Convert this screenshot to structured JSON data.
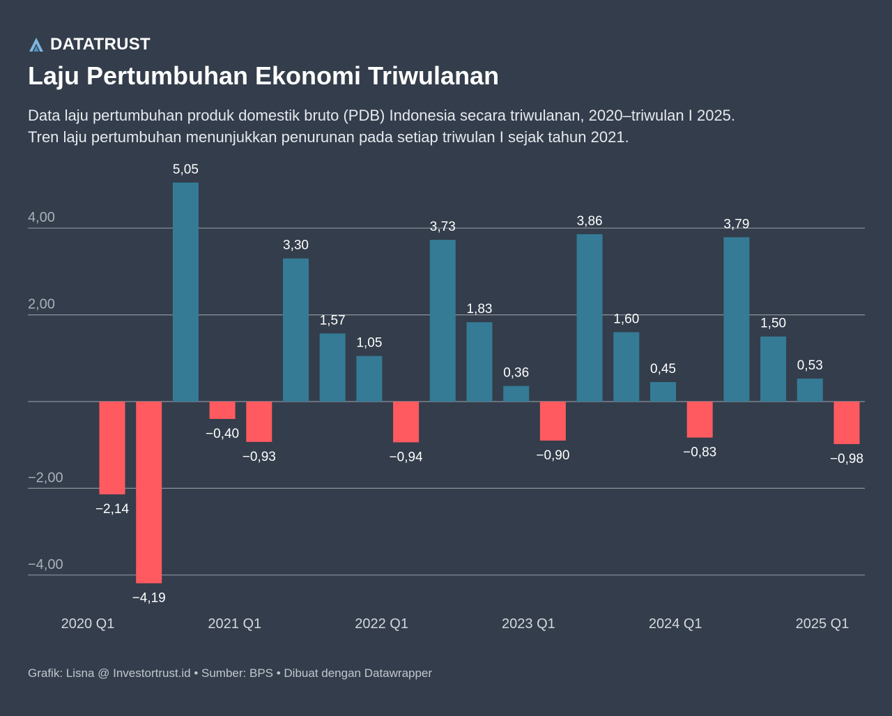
{
  "brand": {
    "name": "DATATRUST",
    "logo_icon": "datatrust-a-icon",
    "logo_color": "#7fb7df"
  },
  "header": {
    "title": "Laju Pertumbuhan Ekonomi Triwulanan",
    "subtitle_line1": "Data laju pertumbuhan produk domestik bruto (PDB) Indonesia secara triwulanan, 2020–triwulan I 2025.",
    "subtitle_line2": "Tren laju pertumbuhan menunjukkan penurunan pada setiap triwulan I sejak tahun 2021."
  },
  "colors": {
    "background": "#333d4b",
    "positive": "#357b96",
    "negative": "#ff5a5f",
    "gridline": "#8d939c",
    "tick_text": "#aab0b8",
    "label_text": "#ffffff"
  },
  "chart_data": {
    "type": "bar",
    "title": "Laju Pertumbuhan Ekonomi Triwulanan",
    "xlabel": "",
    "ylabel": "",
    "ylim": [
      -4.5,
      5.5
    ],
    "grid": true,
    "y_ticks": [
      -4,
      -2,
      0,
      2,
      4
    ],
    "y_tick_labels": [
      "−4,00",
      "−2,00",
      "",
      "2,00",
      "4,00"
    ],
    "x_tick_labels": [
      {
        "index": 0,
        "label": "2020 Q1"
      },
      {
        "index": 4,
        "label": "2021 Q1"
      },
      {
        "index": 8,
        "label": "2022 Q1"
      },
      {
        "index": 12,
        "label": "2023 Q1"
      },
      {
        "index": 16,
        "label": "2024 Q1"
      },
      {
        "index": 20,
        "label": "2025 Q1"
      }
    ],
    "categories": [
      "2020 Q1",
      "2020 Q2",
      "2020 Q3",
      "2020 Q4",
      "2021 Q1",
      "2021 Q2",
      "2021 Q3",
      "2021 Q4",
      "2022 Q1",
      "2022 Q2",
      "2022 Q3",
      "2022 Q4",
      "2023 Q1",
      "2023 Q2",
      "2023 Q3",
      "2023 Q4",
      "2024 Q1",
      "2024 Q2",
      "2024 Q3",
      "2024 Q4",
      "2025 Q1"
    ],
    "values": [
      -2.14,
      -4.19,
      5.05,
      -0.4,
      -0.93,
      3.3,
      1.57,
      1.05,
      -0.94,
      3.73,
      1.83,
      0.36,
      -0.9,
      3.86,
      1.6,
      0.45,
      -0.83,
      3.79,
      1.5,
      0.53,
      -0.98
    ],
    "labels": [
      "−2,14",
      "−4,19",
      "5,05",
      "−0,40",
      "−0,93",
      "3,30",
      "1,57",
      "1,05",
      "−0,94",
      "3,73",
      "1,83",
      "0,36",
      "−0,90",
      "3,86",
      "1,60",
      "0,45",
      "−0,83",
      "3,79",
      "1,50",
      "0,53",
      "−0,98"
    ]
  },
  "footer": {
    "credit": "Grafik: Lisna @ Investortrust.id • Sumber: BPS • Dibuat dengan Datawrapper"
  }
}
